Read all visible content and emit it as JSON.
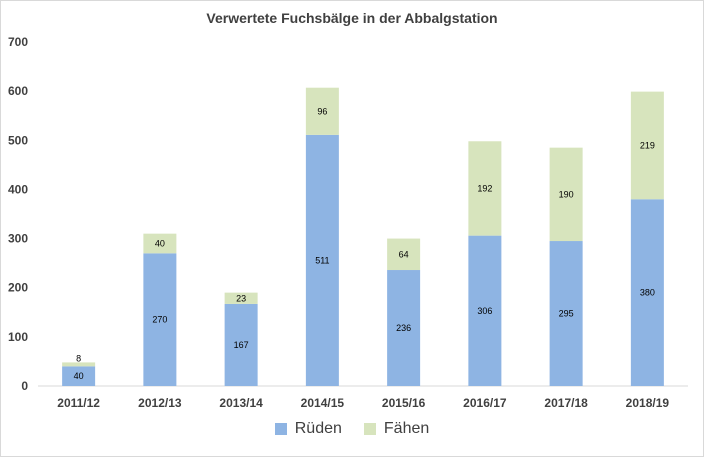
{
  "chart_data": {
    "type": "bar",
    "stacked": true,
    "title": "Verwertete Fuchsbälge in der Abbalgstation",
    "categories": [
      "2011/12",
      "2012/13",
      "2013/14",
      "2014/15",
      "2015/16",
      "2016/17",
      "2017/18",
      "2018/19"
    ],
    "series": [
      {
        "name": "Rüden",
        "color": "#8eb4e3",
        "values": [
          40,
          270,
          167,
          511,
          236,
          306,
          295,
          380
        ]
      },
      {
        "name": "Fähen",
        "color": "#d7e4bd",
        "values": [
          8,
          40,
          23,
          96,
          64,
          192,
          190,
          219
        ]
      }
    ],
    "ylim": [
      0,
      700
    ],
    "yticks": [
      0,
      100,
      200,
      300,
      400,
      500,
      600,
      700
    ],
    "grid": false,
    "legend": "bottom"
  }
}
